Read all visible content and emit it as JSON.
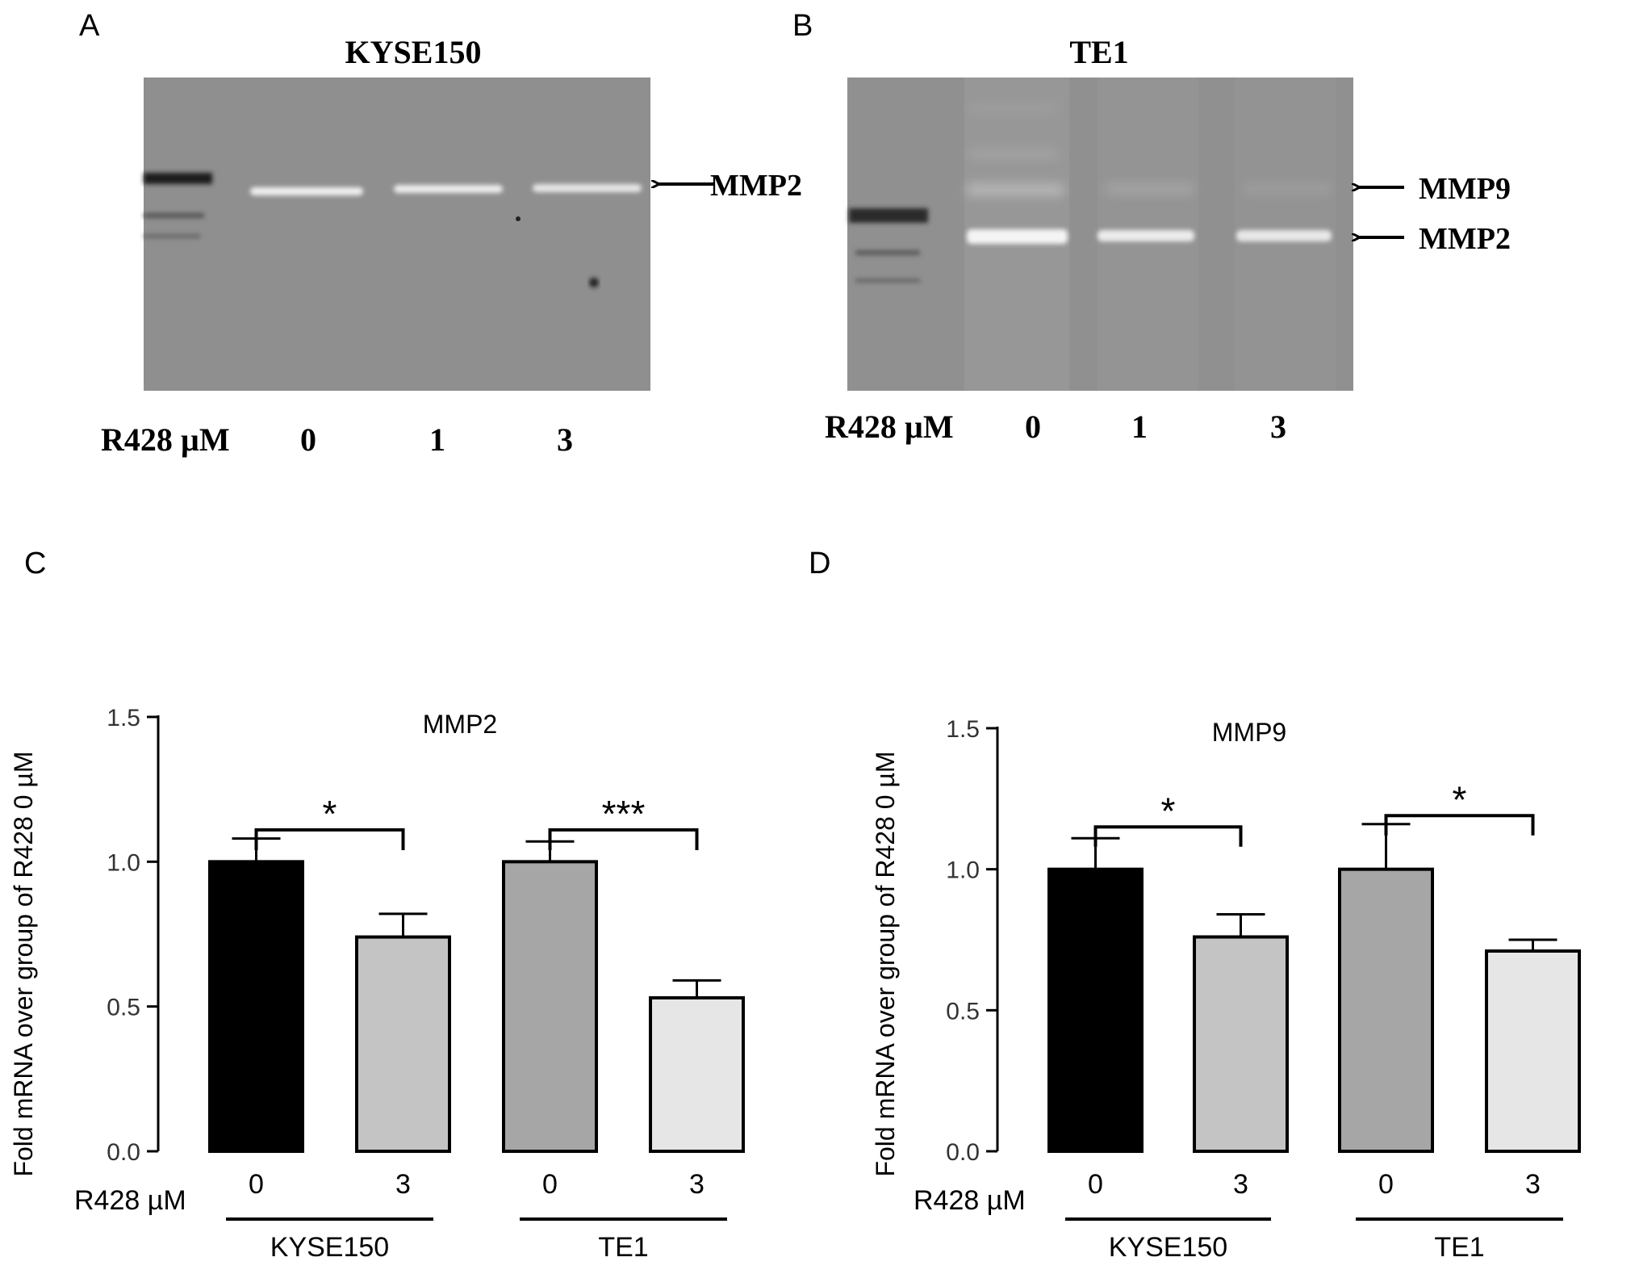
{
  "colors": {
    "gel_background": "#8c8c8c",
    "band": "#f0f0f0",
    "ladder_band": "#1e1e1e",
    "bar_black": "#000000",
    "bar_light_gray": "#c4c4c4",
    "bar_mid_gray": "#a6a6a6",
    "bar_lightest_gray": "#e6e6e6"
  },
  "panels": {
    "A": {
      "letter": "A",
      "title": "KYSE150",
      "band_label": "MMP2",
      "lane_axis_label": "R428 µM",
      "lanes": [
        "0",
        "1",
        "3"
      ]
    },
    "B": {
      "letter": "B",
      "title": "TE1",
      "band_labels": [
        "MMP9",
        "MMP2"
      ],
      "lane_axis_label": "R428 µM",
      "lanes": [
        "0",
        "1",
        "3"
      ]
    }
  },
  "chart_data": [
    {
      "panel": "C",
      "type": "bar",
      "title": "MMP2",
      "ylabel": "Fold mRNA over group of R428 0 µM",
      "ylim": [
        0,
        1.5
      ],
      "yticks": [
        "0.0",
        "0.5",
        "1.0",
        "1.5"
      ],
      "x_axis_label": "R428 µM",
      "categories": [
        "0",
        "3",
        "0",
        "3"
      ],
      "groups": [
        {
          "name": "KYSE150",
          "span": [
            0,
            1
          ]
        },
        {
          "name": "TE1",
          "span": [
            2,
            3
          ]
        }
      ],
      "values": [
        1.0,
        0.74,
        1.0,
        0.53
      ],
      "errors": [
        0.08,
        0.08,
        0.07,
        0.06
      ],
      "bar_colors": [
        "#000000",
        "#c4c4c4",
        "#a6a6a6",
        "#e6e6e6"
      ],
      "significance": [
        {
          "from": 0,
          "to": 1,
          "label": "*",
          "y": 1.11
        },
        {
          "from": 2,
          "to": 3,
          "label": "***",
          "y": 1.11
        }
      ]
    },
    {
      "panel": "D",
      "type": "bar",
      "title": "MMP9",
      "ylabel": "Fold mRNA over group of R428 0 µM",
      "ylim": [
        0,
        1.5
      ],
      "yticks": [
        "0.0",
        "0.5",
        "1.0",
        "1.5"
      ],
      "x_axis_label": "R428 µM",
      "categories": [
        "0",
        "3",
        "0",
        "3"
      ],
      "groups": [
        {
          "name": "KYSE150",
          "span": [
            0,
            1
          ]
        },
        {
          "name": "TE1",
          "span": [
            2,
            3
          ]
        }
      ],
      "values": [
        1.0,
        0.76,
        1.0,
        0.71
      ],
      "errors": [
        0.11,
        0.08,
        0.16,
        0.04
      ],
      "bar_colors": [
        "#000000",
        "#c4c4c4",
        "#a6a6a6",
        "#e6e6e6"
      ],
      "significance": [
        {
          "from": 0,
          "to": 1,
          "label": "*",
          "y": 1.15
        },
        {
          "from": 2,
          "to": 3,
          "label": "*",
          "y": 1.19
        }
      ]
    }
  ],
  "chart_letters": [
    "C",
    "D"
  ]
}
